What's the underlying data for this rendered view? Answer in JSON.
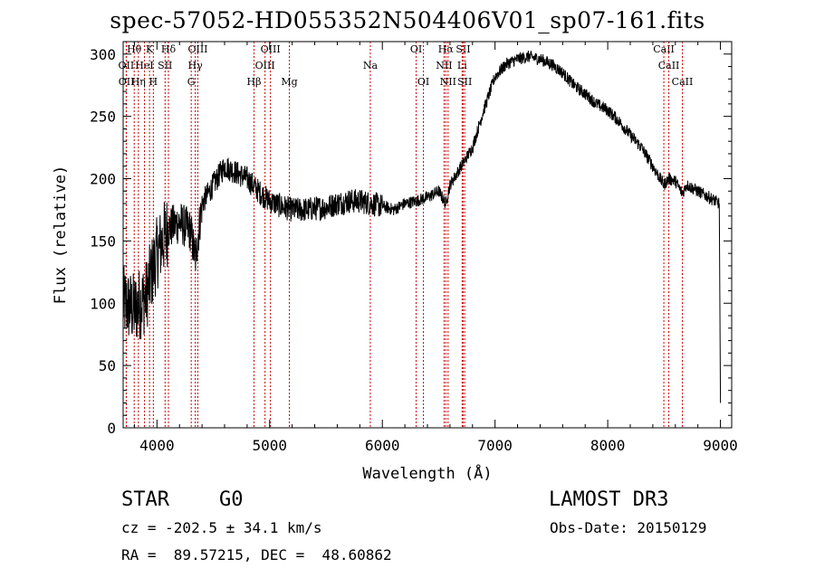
{
  "chart_data": {
    "type": "line",
    "title": "spec-57052-HD055352N504406V01_sp07-161.fits",
    "xlabel": "Wavelength (Å)",
    "ylabel": "Flux (relative)",
    "xlim": [
      3700,
      9100
    ],
    "ylim": [
      0,
      310
    ],
    "x_ticks": [
      4000,
      5000,
      6000,
      7000,
      8000,
      9000
    ],
    "y_ticks": [
      0,
      50,
      100,
      150,
      200,
      250,
      300
    ],
    "series": [
      {
        "name": "spectrum",
        "x": [
          3700,
          3800,
          3900,
          4000,
          4100,
          4200,
          4300,
          4340,
          4400,
          4500,
          4600,
          4700,
          4800,
          4900,
          5000,
          5100,
          5200,
          5300,
          5400,
          5500,
          5600,
          5700,
          5800,
          5900,
          6000,
          6100,
          6200,
          6300,
          6400,
          6500,
          6563,
          6600,
          6700,
          6800,
          6900,
          7000,
          7100,
          7200,
          7300,
          7400,
          7500,
          7600,
          7700,
          7800,
          7900,
          8000,
          8100,
          8200,
          8300,
          8400,
          8498,
          8542,
          8600,
          8662,
          8700,
          8800,
          8900,
          8990,
          9000
        ],
        "values": [
          100,
          95,
          105,
          140,
          160,
          165,
          158,
          135,
          180,
          195,
          210,
          205,
          200,
          190,
          182,
          178,
          175,
          175,
          176,
          177,
          180,
          182,
          182,
          180,
          178,
          175,
          180,
          182,
          185,
          190,
          180,
          195,
          210,
          225,
          255,
          282,
          292,
          296,
          298,
          296,
          292,
          285,
          275,
          268,
          260,
          255,
          246,
          235,
          225,
          210,
          195,
          200,
          198,
          188,
          195,
          190,
          185,
          180,
          20
        ]
      }
    ],
    "lines": [
      {
        "name": "Hθ",
        "wl": 3798,
        "row": 0
      },
      {
        "name": "K",
        "wl": 3934,
        "row": 0
      },
      {
        "name": "Hδ",
        "wl": 4102,
        "row": 0
      },
      {
        "name": "OIII",
        "wl": 4363,
        "row": 0
      },
      {
        "name": "OIII",
        "wl": 5007,
        "row": 0
      },
      {
        "name": "OI",
        "wl": 6300,
        "row": 0
      },
      {
        "name": "Hα",
        "wl": 6563,
        "row": 0
      },
      {
        "name": "SII",
        "wl": 6717,
        "row": 0
      },
      {
        "name": "CaII",
        "wl": 8498,
        "row": 0
      },
      {
        "name": "OII",
        "wl": 3727,
        "row": 1
      },
      {
        "name": "HeI",
        "wl": 3889,
        "row": 1
      },
      {
        "name": "SII",
        "wl": 4072,
        "row": 1
      },
      {
        "name": "Hγ",
        "wl": 4340,
        "row": 1
      },
      {
        "name": "OIII",
        "wl": 4959,
        "row": 1
      },
      {
        "name": "Na",
        "wl": 5893,
        "row": 1
      },
      {
        "name": "NII",
        "wl": 6548,
        "row": 1
      },
      {
        "name": "Li",
        "wl": 6708,
        "row": 1
      },
      {
        "name": "CaII",
        "wl": 8542,
        "row": 1
      },
      {
        "name": "OII",
        "wl": 3729,
        "row": 2
      },
      {
        "name": "Hη",
        "wl": 3835,
        "row": 2
      },
      {
        "name": "H",
        "wl": 3968,
        "row": 2
      },
      {
        "name": "G",
        "wl": 4304,
        "row": 2
      },
      {
        "name": "Hβ",
        "wl": 4861,
        "row": 2
      },
      {
        "name": "Mg",
        "wl": 5175,
        "row": 2
      },
      {
        "name": "OI",
        "wl": 6364,
        "row": 2
      },
      {
        "name": "NII",
        "wl": 6583,
        "row": 2
      },
      {
        "name": "SII",
        "wl": 6731,
        "row": 2
      },
      {
        "name": "CaII",
        "wl": 8662,
        "row": 2
      }
    ]
  },
  "object_class": "STAR",
  "subclass": "G0",
  "survey": "LAMOST DR3",
  "redshift_text": "cz = -202.5 ± 34.1 km/s",
  "obs_date_text": "Obs-Date: 20150129",
  "coords_text": "RA =  89.57215, DEC =  48.60862",
  "colors": {
    "spectrum": "#000000",
    "line_marker": "#cc0000",
    "axis": "#000000"
  }
}
